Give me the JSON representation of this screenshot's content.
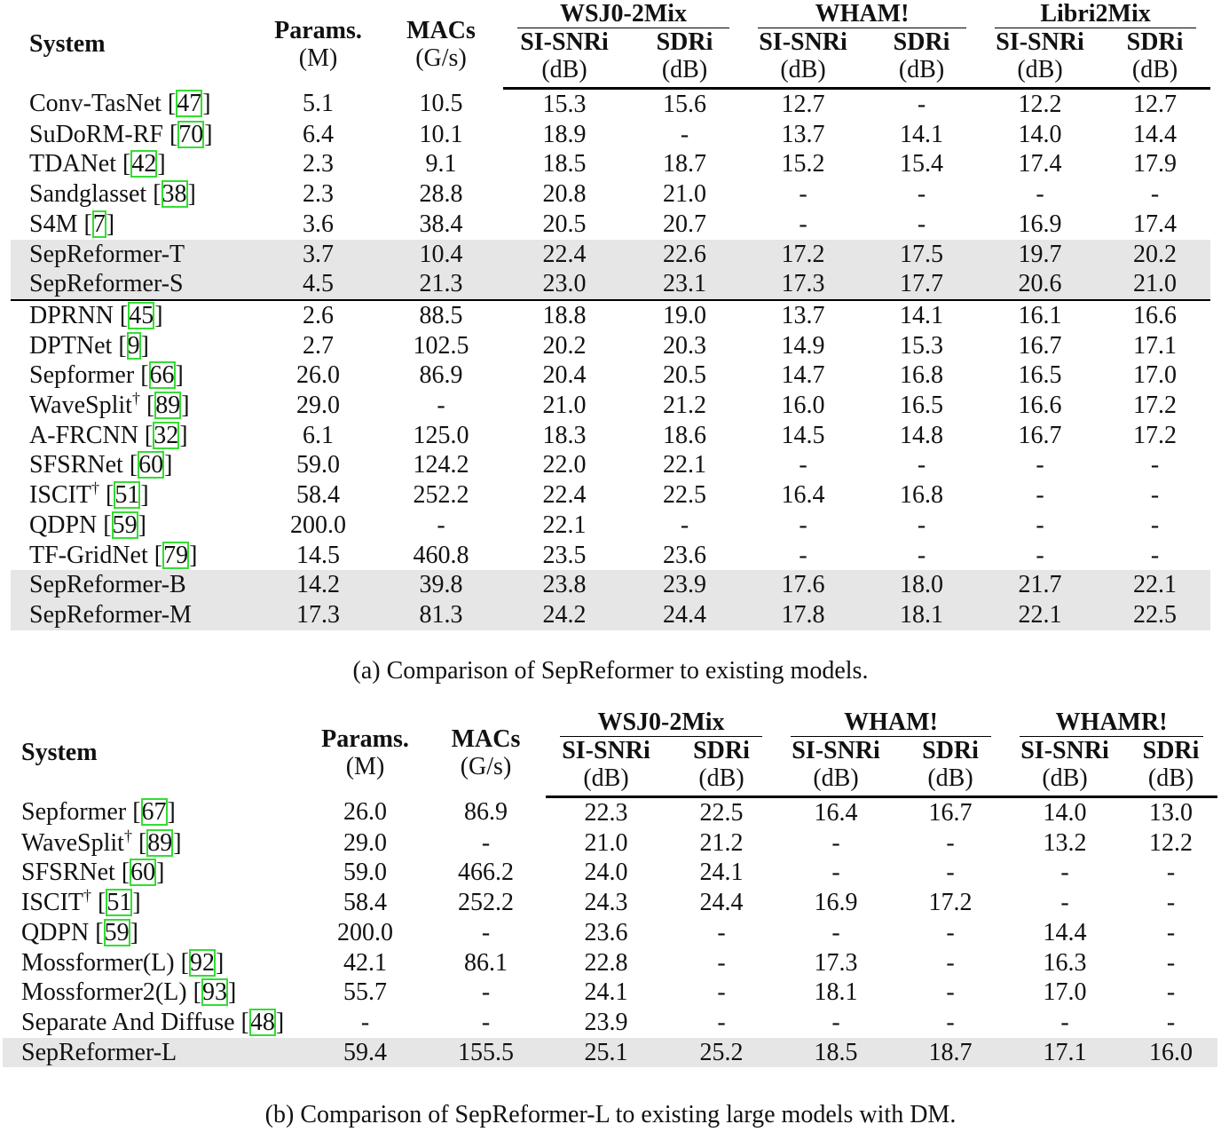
{
  "tables": [
    {
      "header": {
        "system": "System",
        "params": "Params.",
        "params_unit": "(M)",
        "macs": "MACs",
        "macs_unit": "(G/s)",
        "groups": [
          "WSJ0-2Mix",
          "WHAM!",
          "Libri2Mix"
        ],
        "metrics": [
          "SI-SNRi",
          "SDRi"
        ],
        "metric_unit": "(dB)"
      },
      "rows": [
        {
          "name": "Conv-TasNet",
          "cite": "[47]",
          "cells": [
            "5.1",
            "10.5",
            "15.3",
            "15.6",
            "12.7",
            "-",
            "12.2",
            "12.7"
          ]
        },
        {
          "name": "SuDoRM-RF",
          "cite": "[70]",
          "cells": [
            "6.4",
            "10.1",
            "18.9",
            "-",
            "13.7",
            "14.1",
            "14.0",
            "14.4"
          ]
        },
        {
          "name": "TDANet",
          "cite": "[42]",
          "cells": [
            "2.3",
            "9.1",
            "18.5",
            "18.7",
            "15.2",
            "15.4",
            "17.4",
            "17.9"
          ]
        },
        {
          "name": "Sandglasset",
          "cite": "[38]",
          "cells": [
            "2.3",
            "28.8",
            "20.8",
            "21.0",
            "-",
            "-",
            "-",
            "-"
          ]
        },
        {
          "name": "S4M",
          "cite": "[7]",
          "cells": [
            "3.6",
            "38.4",
            "20.5",
            "20.7",
            "-",
            "-",
            "16.9",
            "17.4"
          ]
        },
        {
          "name": "SepReformer-T",
          "highlight": true,
          "cells": [
            "3.7",
            "10.4",
            "22.4",
            "22.6",
            "17.2",
            "17.5",
            "19.7",
            "20.2"
          ]
        },
        {
          "name": "SepReformer-S",
          "highlight": true,
          "cells": [
            "4.5",
            "21.3",
            "23.0",
            "23.1",
            "17.3",
            "17.7",
            "20.6",
            "21.0"
          ]
        },
        {
          "name": "DPRNN",
          "cite": "[45]",
          "group_start": true,
          "cells": [
            "2.6",
            "88.5",
            "18.8",
            "19.0",
            "13.7",
            "14.1",
            "16.1",
            "16.6"
          ]
        },
        {
          "name": "DPTNet",
          "cite": "[9]",
          "cells": [
            "2.7",
            "102.5",
            "20.2",
            "20.3",
            "14.9",
            "15.3",
            "16.7",
            "17.1"
          ]
        },
        {
          "name": "Sepformer",
          "cite": "[66]",
          "cells": [
            "26.0",
            "86.9",
            "20.4",
            "20.5",
            "14.7",
            "16.8",
            "16.5",
            "17.0"
          ]
        },
        {
          "name": "WaveSplit",
          "dagger": "†",
          "cite": "[89]",
          "cells": [
            "29.0",
            "-",
            "21.0",
            "21.2",
            "16.0",
            "16.5",
            "16.6",
            "17.2"
          ]
        },
        {
          "name": "A-FRCNN",
          "cite": "[32]",
          "cells": [
            "6.1",
            "125.0",
            "18.3",
            "18.6",
            "14.5",
            "14.8",
            "16.7",
            "17.2"
          ]
        },
        {
          "name": "SFSRNet",
          "cite": "[60]",
          "cells": [
            "59.0",
            "124.2",
            "22.0",
            "22.1",
            "-",
            "-",
            "-",
            "-"
          ]
        },
        {
          "name": "ISCIT",
          "dagger": "†",
          "cite": "[51]",
          "cells": [
            "58.4",
            "252.2",
            "22.4",
            "22.5",
            "16.4",
            "16.8",
            "-",
            "-"
          ]
        },
        {
          "name": "QDPN",
          "cite": "[59]",
          "cells": [
            "200.0",
            "-",
            "22.1",
            "-",
            "-",
            "-",
            "-",
            "-"
          ]
        },
        {
          "name": "TF-GridNet",
          "cite": "[79]",
          "cells": [
            "14.5",
            "460.8",
            "23.5",
            "23.6",
            "-",
            "-",
            "-",
            "-"
          ]
        },
        {
          "name": "SepReformer-B",
          "highlight": true,
          "cells": [
            "14.2",
            "39.8",
            "23.8",
            "23.9",
            "17.6",
            "18.0",
            "21.7",
            "22.1"
          ]
        },
        {
          "name": "SepReformer-M",
          "highlight": true,
          "cells": [
            "17.3",
            "81.3",
            "24.2",
            "24.4",
            "17.8",
            "18.1",
            "22.1",
            "22.5"
          ]
        }
      ],
      "caption": "(a) Comparison of SepReformer to existing models."
    },
    {
      "header": {
        "system": "System",
        "params": "Params.",
        "params_unit": "(M)",
        "macs": "MACs",
        "macs_unit": "(G/s)",
        "groups": [
          "WSJ0-2Mix",
          "WHAM!",
          "WHAMR!"
        ],
        "metrics": [
          "SI-SNRi",
          "SDRi"
        ],
        "metric_unit": "(dB)"
      },
      "rows": [
        {
          "name": "Sepformer",
          "cite": "[67]",
          "cells": [
            "26.0",
            "86.9",
            "22.3",
            "22.5",
            "16.4",
            "16.7",
            "14.0",
            "13.0"
          ]
        },
        {
          "name": "WaveSplit",
          "dagger": "†",
          "cite": "[89]",
          "cells": [
            "29.0",
            "-",
            "21.0",
            "21.2",
            "-",
            "-",
            "13.2",
            "12.2"
          ]
        },
        {
          "name": "SFSRNet",
          "cite": "[60]",
          "cells": [
            "59.0",
            "466.2",
            "24.0",
            "24.1",
            "-",
            "-",
            "-",
            "-"
          ]
        },
        {
          "name": "ISCIT",
          "dagger": "†",
          "cite": "[51]",
          "cells": [
            "58.4",
            "252.2",
            "24.3",
            "24.4",
            "16.9",
            "17.2",
            "-",
            "-"
          ]
        },
        {
          "name": "QDPN",
          "cite": "[59]",
          "cells": [
            "200.0",
            "-",
            "23.6",
            "-",
            "-",
            "-",
            "14.4",
            "-"
          ]
        },
        {
          "name": "Mossformer(L)",
          "cite": "[92]",
          "cells": [
            "42.1",
            "86.1",
            "22.8",
            "-",
            "17.3",
            "-",
            "16.3",
            "-"
          ]
        },
        {
          "name": "Mossformer2(L)",
          "cite": "[93]",
          "cells": [
            "55.7",
            "-",
            "24.1",
            "-",
            "18.1",
            "-",
            "17.0",
            "-"
          ]
        },
        {
          "name": "Separate And Diffuse",
          "cite": "[48]",
          "cells": [
            "-",
            "-",
            "23.9",
            "-",
            "-",
            "-",
            "-",
            "-"
          ]
        },
        {
          "name": "SepReformer-L",
          "highlight": true,
          "cells": [
            "59.4",
            "155.5",
            "25.1",
            "25.2",
            "18.5",
            "18.7",
            "17.1",
            "16.0"
          ]
        }
      ],
      "caption": "(b) Comparison of SepReformer-L to existing large models with DM."
    }
  ]
}
